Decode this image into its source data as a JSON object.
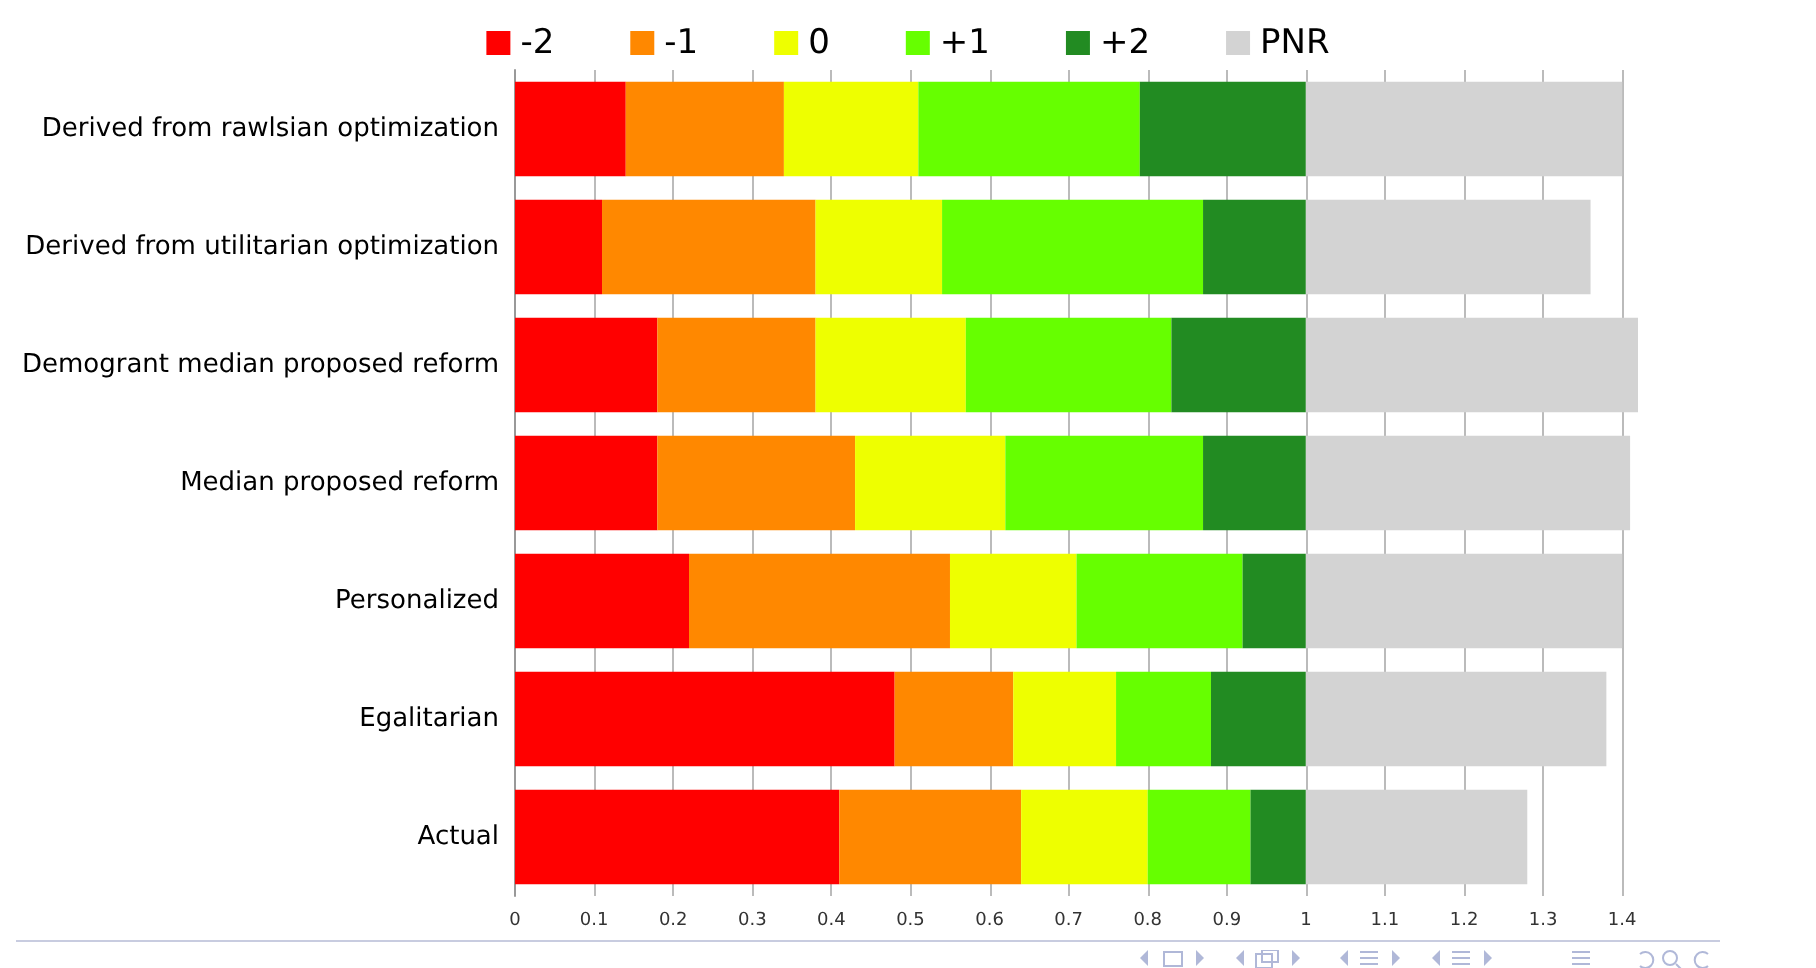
{
  "chart_data": {
    "type": "bar",
    "orientation": "horizontal",
    "stacked": true,
    "categories": [
      "Derived from rawlsian optimization",
      "Derived from utilitarian optimization",
      "Demogrant median proposed reform",
      "Median proposed reform",
      "Personalized",
      "Egalitarian",
      "Actual"
    ],
    "series": [
      {
        "name": "-2",
        "color": "#ff0000",
        "values": [
          0.14,
          0.11,
          0.18,
          0.18,
          0.22,
          0.48,
          0.41
        ]
      },
      {
        "name": "-1",
        "color": "#ff8800",
        "values": [
          0.2,
          0.27,
          0.2,
          0.25,
          0.33,
          0.15,
          0.23
        ]
      },
      {
        "name": "0",
        "color": "#eeff00",
        "values": [
          0.17,
          0.16,
          0.19,
          0.19,
          0.16,
          0.13,
          0.16
        ]
      },
      {
        "name": "+1",
        "color": "#66ff00",
        "values": [
          0.28,
          0.33,
          0.26,
          0.25,
          0.21,
          0.12,
          0.13
        ]
      },
      {
        "name": "+2",
        "color": "#228b22",
        "values": [
          0.21,
          0.13,
          0.17,
          0.13,
          0.08,
          0.12,
          0.07
        ]
      },
      {
        "name": "PNR",
        "color": "#d3d3d3",
        "values": [
          0.4,
          0.36,
          0.42,
          0.41,
          0.4,
          0.38,
          0.28
        ]
      }
    ],
    "xlim": [
      0,
      1.42
    ],
    "xticks": [
      0,
      0.1,
      0.2,
      0.3,
      0.4,
      0.5,
      0.6,
      0.7,
      0.8,
      0.9,
      1,
      1.1,
      1.2,
      1.3,
      1.4
    ],
    "grid": "x",
    "legend": "top"
  }
}
